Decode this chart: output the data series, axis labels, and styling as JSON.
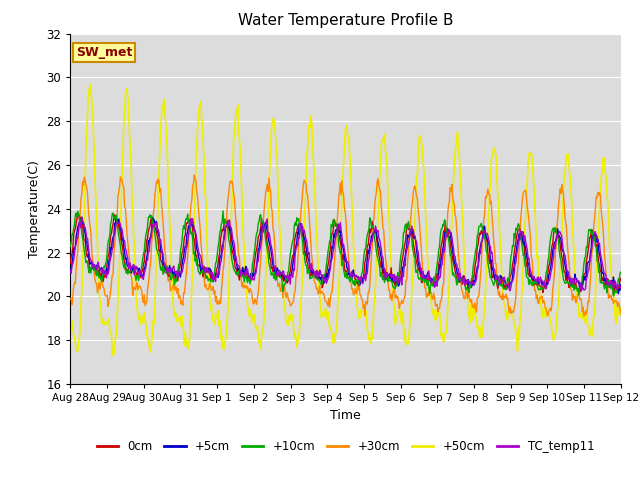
{
  "title": "Water Temperature Profile B",
  "xlabel": "Time",
  "ylabel": "Temperature(C)",
  "ylim": [
    16,
    32
  ],
  "yticks": [
    16,
    18,
    20,
    22,
    24,
    26,
    28,
    30,
    32
  ],
  "bg_color": "#dcdcdc",
  "fig_bg": "#ffffff",
  "annotation_text": "SW_met",
  "annotation_box_color": "#ffff99",
  "annotation_text_color": "#8b0000",
  "annotation_border_color": "#cc8800",
  "series_order": [
    "0cm",
    "+5cm",
    "+10cm",
    "+30cm",
    "+50cm",
    "TC_temp11"
  ],
  "series": {
    "0cm": {
      "color": "#cc0000",
      "lw": 1.0
    },
    "+5cm": {
      "color": "#0000cc",
      "lw": 1.0
    },
    "+10cm": {
      "color": "#00aa00",
      "lw": 1.0
    },
    "+30cm": {
      "color": "#ff8800",
      "lw": 1.0
    },
    "+50cm": {
      "color": "#eeee00",
      "lw": 1.2
    },
    "TC_temp11": {
      "color": "#aa00cc",
      "lw": 1.0
    }
  },
  "x_tick_labels": [
    "Aug 28",
    "Aug 29",
    "Aug 30",
    "Aug 31",
    "Sep 1",
    "Sep 2",
    "Sep 3",
    "Sep 4",
    "Sep 5",
    "Sep 6",
    "Sep 7",
    "Sep 8",
    "Sep 9",
    "Sep 10",
    "Sep 11",
    "Sep 12"
  ],
  "n_points": 672,
  "days": 15,
  "base_temp": 22.0,
  "trend_slope": -0.05,
  "amplitudes": {
    "0cm": 1.2,
    "+5cm": 1.1,
    "+10cm": 1.3,
    "+30cm": 2.5,
    "+50cm": 5.5,
    "TC_temp11": 1.1
  },
  "phase_shifts": {
    "0cm": 0.0,
    "+5cm": 0.05,
    "+10cm": -0.05,
    "+30cm": 0.15,
    "+50cm": 0.3,
    "TC_temp11": 0.08
  },
  "noise_scales": {
    "0cm": 0.12,
    "+5cm": 0.12,
    "+10cm": 0.12,
    "+30cm": 0.15,
    "+50cm": 0.2,
    "TC_temp11": 0.12
  },
  "amplitude_decay": {
    "0cm": 0.0,
    "+5cm": 0.0,
    "+10cm": 0.0,
    "+30cm": 0.0,
    "+50cm": 0.03,
    "TC_temp11": 0.0
  }
}
